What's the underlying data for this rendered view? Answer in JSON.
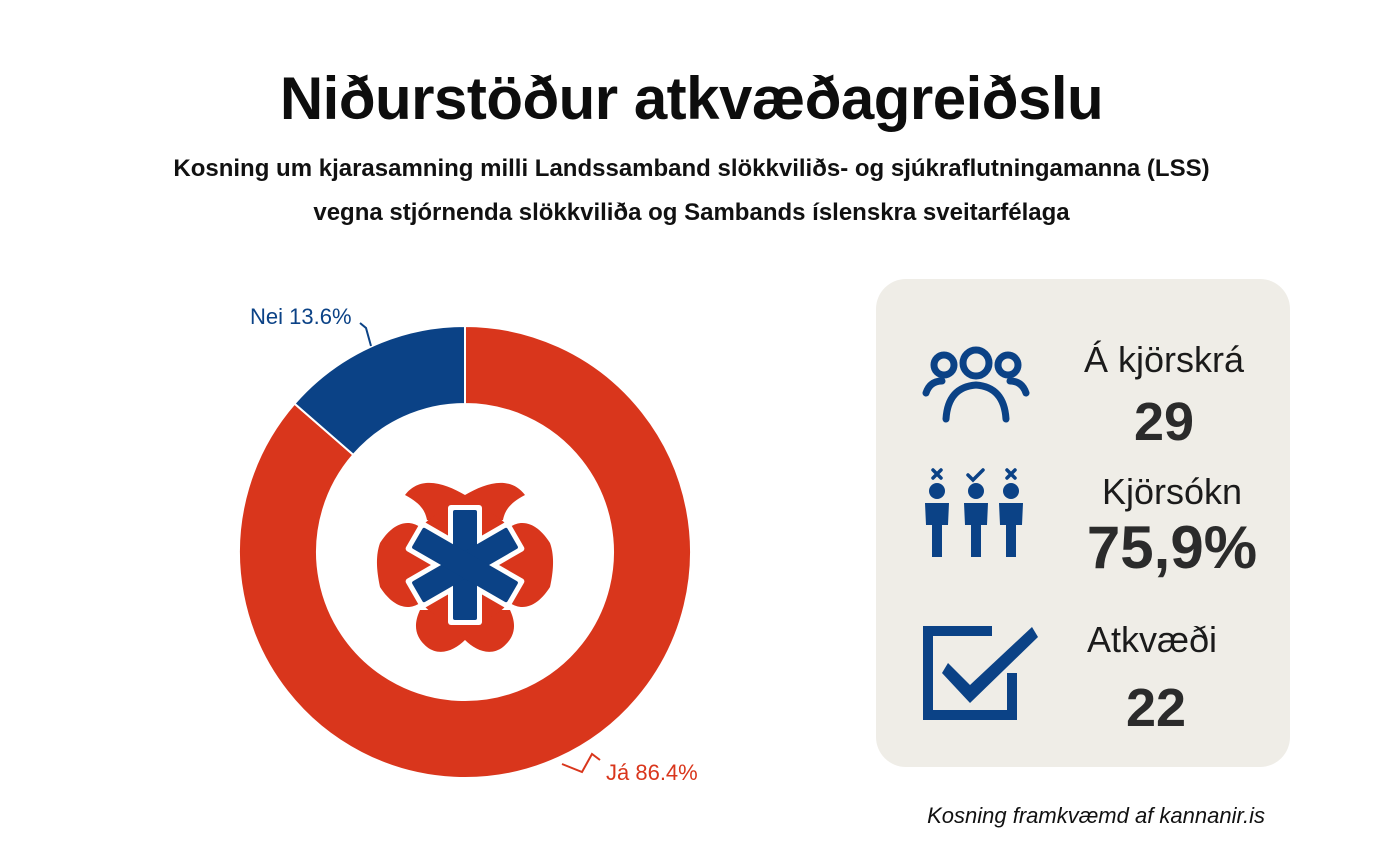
{
  "header": {
    "title": "Niðurstöður atkvæðagreiðslu",
    "subtitle_line1": "Kosning um kjarasamning milli Landssamband slökkviliðs- og sjúkraflutningamanna (LSS)",
    "subtitle_line2": "vegna stjórnenda slökkviliða og Sambands íslenskra sveitarfélaga"
  },
  "chart_data": {
    "type": "pie",
    "donut": true,
    "categories": [
      "Já",
      "Nei"
    ],
    "values": [
      86.4,
      13.6
    ],
    "labels": [
      "Já 86.4%",
      "Nei 13.6%"
    ],
    "colors": [
      "#d9361c",
      "#0b4286"
    ],
    "center_image": "firefighter-ems-emblem"
  },
  "stats": {
    "registered": {
      "label": "Á kjörskrá",
      "value": "29",
      "icon": "people-group-icon"
    },
    "turnout": {
      "label": "Kjörsókn",
      "value": "75,9%",
      "icon": "voters-icon"
    },
    "votes": {
      "label": "Atkvæði",
      "value": "22",
      "icon": "checkbox-checked-icon"
    }
  },
  "colors": {
    "accent_red": "#d9361c",
    "accent_blue": "#0b4286",
    "card_bg": "#efede7"
  },
  "footer": {
    "note": "Kosning framkvæmd af kannanir.is"
  }
}
